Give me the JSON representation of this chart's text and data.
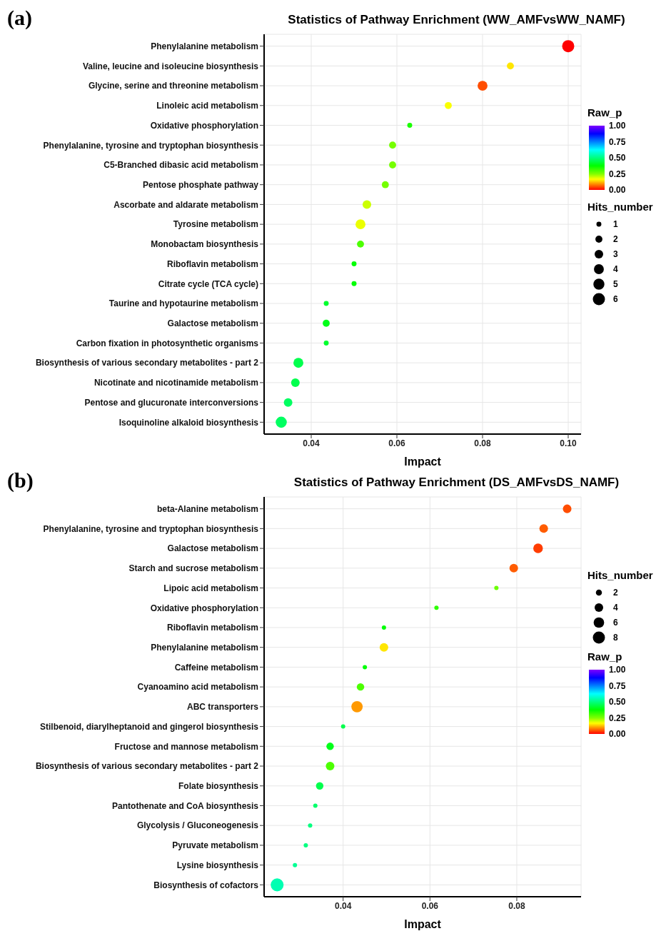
{
  "chart_data": [
    {
      "type": "bubble",
      "orientation": "horizontal",
      "title": "Statistics of Pathway Enrichment (WW_AMFvsWW_NAMF)",
      "xlabel": "Impact",
      "annotations": [
        "(a)"
      ],
      "categories": [
        "Phenylalanine metabolism",
        "Valine, leucine and isoleucine biosynthesis",
        "Glycine, serine and threonine metabolism",
        "Linoleic acid metabolism",
        "Oxidative phosphorylation",
        "Phenylalanine, tyrosine and tryptophan biosynthesis",
        "C5-Branched dibasic acid metabolism",
        "Pentose phosphate pathway",
        "Ascorbate and aldarate metabolism",
        "Tyrosine metabolism",
        "Monobactam biosynthesis",
        "Riboflavin metabolism",
        "Citrate cycle (TCA cycle)",
        "Taurine and hypotaurine metabolism",
        "Galactose metabolism",
        "Carbon fixation in photosynthetic organisms",
        "Biosynthesis of various secondary metabolites - part 2",
        "Nicotinate and nicotinamide metabolism",
        "Pentose and glucuronate interconversions",
        "Isoquinoline alkaloid biosynthesis"
      ],
      "values": [
        0.1,
        0.0865,
        0.08,
        0.072,
        0.063,
        0.059,
        0.059,
        0.0573,
        0.053,
        0.0515,
        0.0515,
        0.05,
        0.05,
        0.0435,
        0.0435,
        0.0435,
        0.037,
        0.0363,
        0.0346,
        0.033
      ],
      "sizes": [
        6,
        2,
        4,
        2,
        1,
        2,
        2,
        2,
        3,
        4,
        2,
        1,
        1,
        1,
        2,
        1,
        4,
        3,
        3,
        5
      ],
      "cvalues": [
        0.0,
        0.15,
        0.05,
        0.17,
        0.35,
        0.26,
        0.26,
        0.26,
        0.2,
        0.18,
        0.3,
        0.38,
        0.38,
        0.42,
        0.4,
        0.42,
        0.45,
        0.45,
        0.47,
        0.47
      ],
      "size_legend": [
        1,
        2,
        3,
        4,
        5,
        6
      ],
      "legend_title": "Hits_number",
      "clabel": "Raw_p",
      "clim": [
        0,
        1
      ],
      "cticks": [
        {
          "value": 0,
          "label": "0.00"
        },
        {
          "value": 0.25,
          "label": "0.25"
        },
        {
          "value": 0.5,
          "label": "0.50"
        },
        {
          "value": 0.75,
          "label": "0.75"
        },
        {
          "value": 1,
          "label": "1.00"
        }
      ],
      "xlim": [
        0.029,
        0.103
      ],
      "xticks": [
        0.04,
        0.06,
        0.08,
        {
          "value": 0.1,
          "label": "0.10"
        }
      ],
      "grid": true
    },
    {
      "type": "bubble",
      "orientation": "horizontal",
      "title": "Statistics of Pathway Enrichment (DS_AMFvsDS_NAMF)",
      "xlabel": "Impact",
      "annotations": [
        "(b)"
      ],
      "categories": [
        "beta-Alanine metabolism",
        "Phenylalanine, tyrosine and tryptophan biosynthesis",
        "Galactose metabolism",
        "Starch and sucrose metabolism",
        "Lipoic acid metabolism",
        "Oxidative phosphorylation",
        "Riboflavin metabolism",
        "Phenylalanine metabolism",
        "Caffeine metabolism",
        "Cyanoamino acid metabolism",
        "ABC transporters",
        "Stilbenoid, diarylheptanoid and gingerol biosynthesis",
        "Fructose and mannose metabolism",
        "Biosynthesis of various secondary metabolites - part 2",
        "Folate biosynthesis",
        "Pantothenate and CoA biosynthesis",
        "Glycolysis / Gluconeogenesis",
        "Pyruvate metabolism",
        "Lysine biosynthesis",
        "Biosynthesis of cofactors"
      ],
      "values": [
        0.0916,
        0.0862,
        0.0849,
        0.0793,
        0.0753,
        0.0615,
        0.0494,
        0.0494,
        0.045,
        0.044,
        0.0432,
        0.04,
        0.037,
        0.037,
        0.0346,
        0.0336,
        0.0324,
        0.0314,
        0.0289,
        0.0248
      ],
      "sizes": [
        4,
        4,
        5,
        4,
        1,
        1,
        1,
        4,
        1,
        3,
        7,
        1,
        3,
        4,
        3,
        1,
        1,
        1,
        1,
        9
      ],
      "cvalues": [
        0.05,
        0.06,
        0.04,
        0.06,
        0.27,
        0.33,
        0.38,
        0.15,
        0.38,
        0.3,
        0.1,
        0.45,
        0.4,
        0.3,
        0.45,
        0.48,
        0.5,
        0.5,
        0.52,
        0.55
      ],
      "size_legend": [
        2,
        4,
        6,
        8
      ],
      "legend_title": "Hits_number",
      "clabel": "Raw_p",
      "clim": [
        0,
        1
      ],
      "cticks": [
        {
          "value": 0,
          "label": "0.00"
        },
        {
          "value": 0.25,
          "label": "0.25"
        },
        {
          "value": 0.5,
          "label": "0.50"
        },
        {
          "value": 0.75,
          "label": "0.75"
        },
        {
          "value": 1,
          "label": "1.00"
        }
      ],
      "xlim": [
        0.0218,
        0.0948
      ],
      "xticks": [
        0.04,
        0.06,
        0.08
      ],
      "grid": true
    }
  ]
}
